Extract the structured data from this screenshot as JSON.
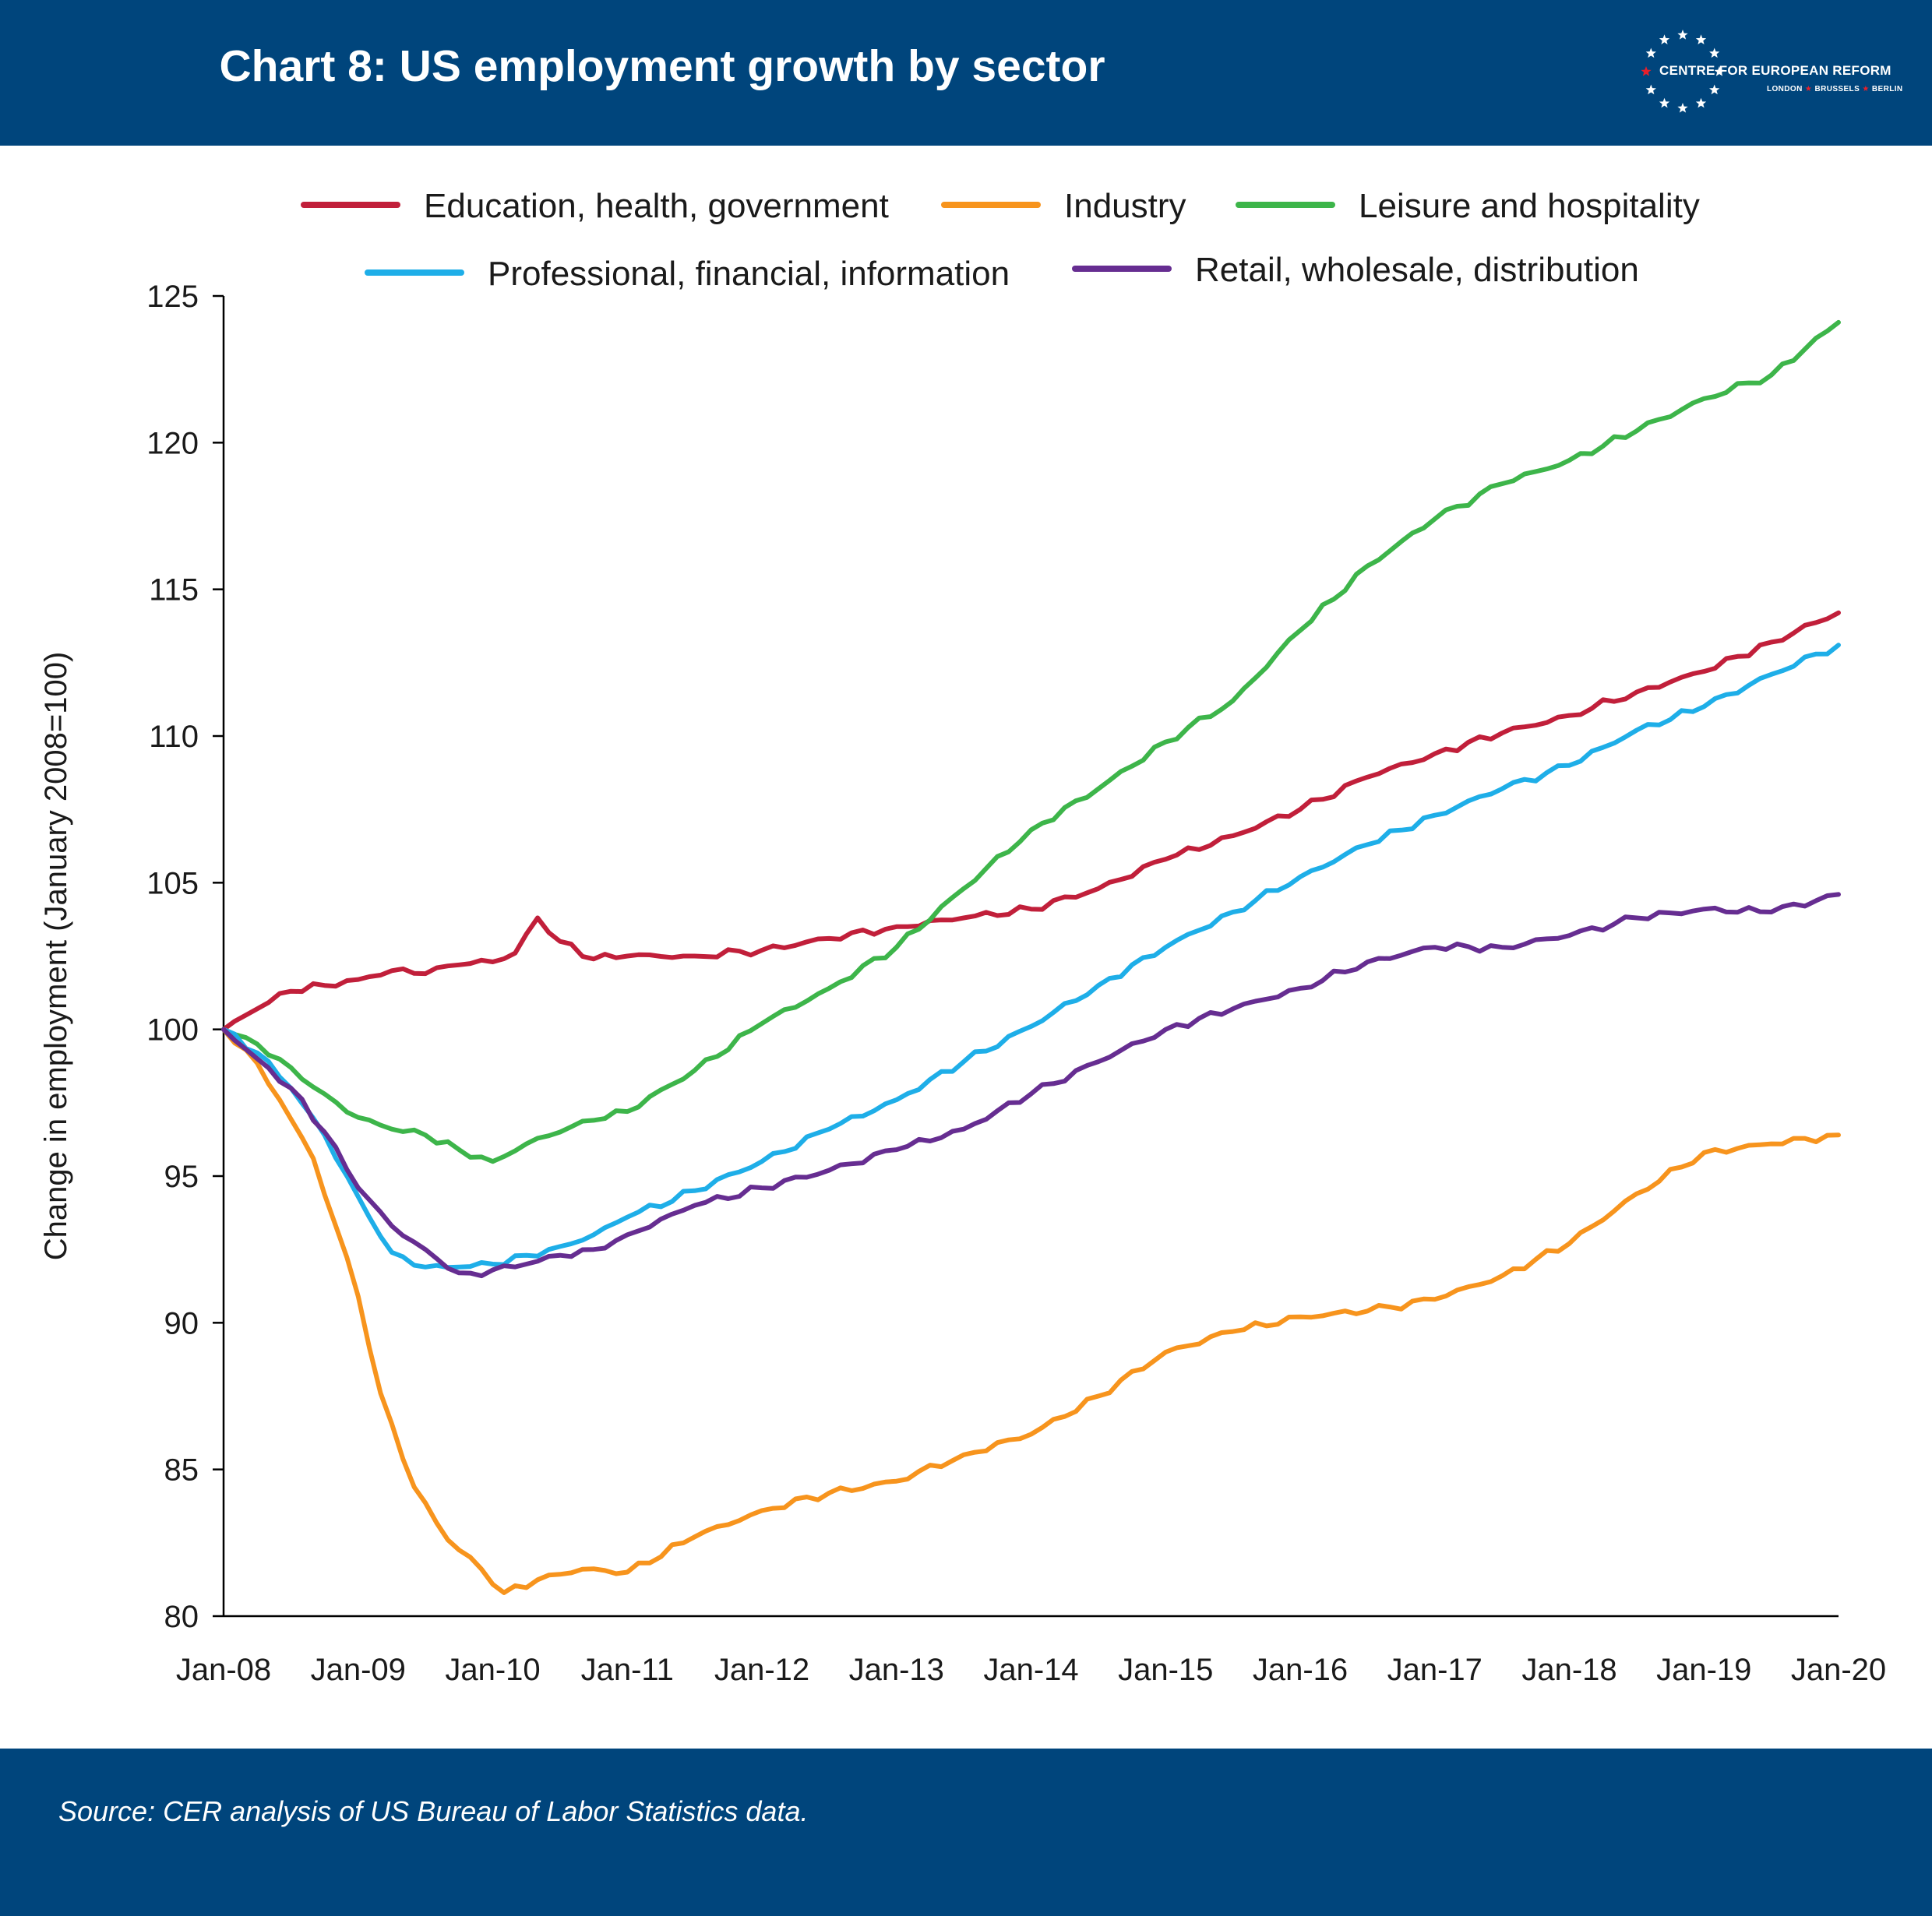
{
  "header": {
    "title": "Chart 8: US employment growth by sector",
    "logo": {
      "name": "CENTRE FOR EUROPEAN REFORM",
      "city1": "LONDON",
      "city2": "BRUSSELS",
      "city3": "BERLIN",
      "separator": "★"
    }
  },
  "footer": {
    "source": "Source: CER analysis of US Bureau of Labor Statistics data."
  },
  "colors": {
    "brand_blue": "#00457c",
    "star_red": "#e8202a"
  },
  "chart_data": {
    "type": "line",
    "title": "Chart 8: US employment growth by sector",
    "ylabel": "Change in employment (January 2008=100)",
    "xlabel": "",
    "ylim": [
      80,
      125
    ],
    "yticks": [
      80,
      85,
      90,
      95,
      100,
      105,
      110,
      115,
      120,
      125
    ],
    "x_ticks": [
      "Jan-08",
      "Jan-09",
      "Jan-10",
      "Jan-11",
      "Jan-12",
      "Jan-13",
      "Jan-14",
      "Jan-15",
      "Jan-16",
      "Jan-17",
      "Jan-18",
      "Jan-19",
      "Jan-20"
    ],
    "grid": false,
    "legend_position": "top",
    "series": [
      {
        "name": "Education, health, government",
        "color": "#c11f3a",
        "x": [
          "2008-01",
          "2008-04",
          "2008-07",
          "2008-10",
          "2009-01",
          "2009-04",
          "2009-07",
          "2009-10",
          "2010-01",
          "2010-03",
          "2010-05",
          "2010-07",
          "2010-10",
          "2011-01",
          "2011-07",
          "2012-01",
          "2012-07",
          "2013-01",
          "2013-07",
          "2014-01",
          "2014-07",
          "2015-01",
          "2015-07",
          "2016-01",
          "2016-07",
          "2017-01",
          "2017-07",
          "2018-01",
          "2018-07",
          "2019-01",
          "2019-07",
          "2020-01"
        ],
        "values": [
          100,
          100.7,
          101.3,
          101.5,
          101.7,
          102.0,
          101.9,
          102.2,
          102.3,
          102.6,
          103.8,
          103.0,
          102.4,
          102.5,
          102.5,
          102.7,
          103.1,
          103.5,
          103.8,
          104.1,
          104.8,
          105.8,
          106.6,
          107.5,
          108.6,
          109.4,
          110.1,
          110.7,
          111.5,
          112.2,
          113.2,
          114.2
        ]
      },
      {
        "name": "Industry",
        "color": "#f7941d",
        "x": [
          "2008-01",
          "2008-03",
          "2008-06",
          "2008-09",
          "2008-11",
          "2009-01",
          "2009-03",
          "2009-06",
          "2009-09",
          "2009-12",
          "2010-02",
          "2010-06",
          "2010-09",
          "2011-01",
          "2011-07",
          "2012-01",
          "2012-07",
          "2013-01",
          "2013-07",
          "2014-01",
          "2014-07",
          "2015-01",
          "2015-07",
          "2016-01",
          "2016-07",
          "2017-01",
          "2017-07",
          "2018-01",
          "2018-07",
          "2019-01",
          "2019-07",
          "2020-01"
        ],
        "values": [
          100,
          99.3,
          97.6,
          95.6,
          93.3,
          90.9,
          87.6,
          84.4,
          82.6,
          81.6,
          80.8,
          81.4,
          81.6,
          81.5,
          82.7,
          83.6,
          84.2,
          84.6,
          85.5,
          86.2,
          87.5,
          89.0,
          89.7,
          90.2,
          90.4,
          90.8,
          91.6,
          92.7,
          94.4,
          95.8,
          96.1,
          96.4
        ]
      },
      {
        "name": "Leisure and hospitality",
        "color": "#3db54a",
        "x": [
          "2008-01",
          "2008-04",
          "2008-07",
          "2008-10",
          "2009-01",
          "2009-04",
          "2009-07",
          "2009-10",
          "2010-01",
          "2010-04",
          "2010-07",
          "2010-10",
          "2011-01",
          "2011-07",
          "2012-01",
          "2012-07",
          "2013-01",
          "2013-07",
          "2014-01",
          "2014-07",
          "2015-01",
          "2015-07",
          "2016-01",
          "2016-07",
          "2017-01",
          "2017-07",
          "2018-01",
          "2018-07",
          "2019-01",
          "2019-07",
          "2020-01"
        ],
        "values": [
          100,
          99.5,
          98.7,
          97.8,
          97.0,
          96.6,
          96.4,
          95.9,
          95.5,
          96.1,
          96.5,
          96.9,
          97.2,
          98.6,
          100.2,
          101.4,
          102.8,
          104.8,
          106.8,
          108.2,
          109.8,
          111.2,
          113.6,
          115.8,
          117.4,
          118.6,
          119.4,
          120.4,
          121.5,
          122.3,
          124.1
        ]
      },
      {
        "name": "Professional, financial, information",
        "color": "#1eaee8",
        "x": [
          "2008-01",
          "2008-04",
          "2008-07",
          "2008-10",
          "2009-01",
          "2009-04",
          "2009-07",
          "2009-10",
          "2010-01",
          "2010-04",
          "2010-07",
          "2010-10",
          "2011-01",
          "2011-07",
          "2012-01",
          "2012-07",
          "2013-01",
          "2013-07",
          "2014-01",
          "2014-07",
          "2015-01",
          "2015-07",
          "2016-01",
          "2016-07",
          "2017-01",
          "2017-07",
          "2018-01",
          "2018-07",
          "2019-01",
          "2019-07",
          "2020-01"
        ],
        "values": [
          100,
          99.2,
          98.0,
          96.4,
          94.3,
          92.4,
          91.9,
          91.9,
          92.0,
          92.3,
          92.6,
          93.0,
          93.6,
          94.5,
          95.5,
          96.6,
          97.6,
          98.9,
          100.1,
          101.5,
          102.8,
          104.0,
          105.2,
          106.3,
          107.3,
          108.2,
          109.0,
          110.2,
          111.0,
          112.1,
          113.1
        ]
      },
      {
        "name": "Retail, wholesale, distribution",
        "color": "#662d91",
        "x": [
          "2008-01",
          "2008-04",
          "2008-07",
          "2008-10",
          "2009-01",
          "2009-04",
          "2009-07",
          "2009-10",
          "2009-12",
          "2010-01",
          "2010-04",
          "2010-07",
          "2010-10",
          "2011-01",
          "2011-07",
          "2012-01",
          "2012-07",
          "2013-01",
          "2013-07",
          "2014-01",
          "2014-07",
          "2015-01",
          "2015-07",
          "2016-01",
          "2016-07",
          "2017-01",
          "2017-07",
          "2018-01",
          "2018-07",
          "2019-01",
          "2019-07",
          "2020-01"
        ],
        "values": [
          100,
          99.0,
          98.0,
          96.5,
          94.6,
          93.3,
          92.5,
          91.7,
          91.6,
          91.8,
          92.0,
          92.3,
          92.5,
          93.0,
          94.0,
          94.6,
          95.2,
          95.9,
          96.6,
          97.8,
          98.9,
          100.0,
          100.7,
          101.4,
          102.3,
          102.8,
          102.8,
          103.2,
          103.8,
          104.1,
          104.0,
          104.6
        ]
      }
    ]
  }
}
